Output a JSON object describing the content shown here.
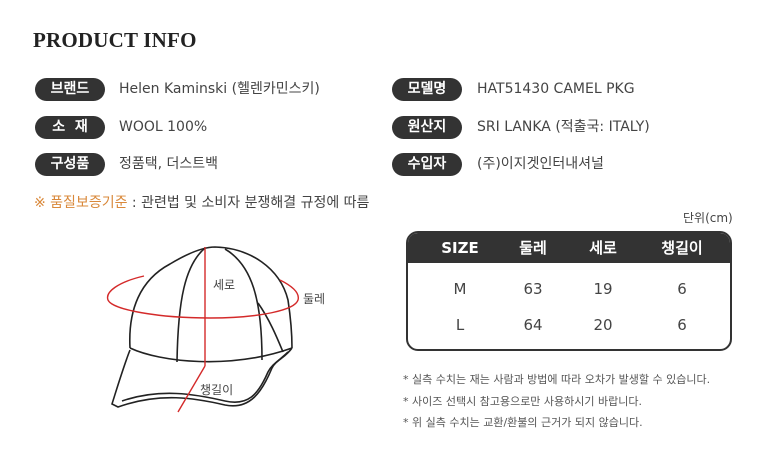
{
  "title": "PRODUCT INFO",
  "info_left": [
    {
      "label": "브랜드",
      "value": "Helen Kaminski (헬렌카민스키)"
    },
    {
      "label": "소  재",
      "value": "WOOL 100%"
    },
    {
      "label": "구성품",
      "value": "정품택, 더스트백"
    }
  ],
  "info_right": [
    {
      "label": "모델명",
      "value": "HAT51430 CAMEL PKG"
    },
    {
      "label": "원산지",
      "value": "SRI LANKA (적출국: ITALY)"
    },
    {
      "label": "수입자",
      "value": "(주)이지겟인터내셔널"
    }
  ],
  "quality": {
    "label": "※ 품질보증기준",
    "text": " : 관련법 및 소비자 분쟁해결 규정에 따름",
    "accent": "#d9883a"
  },
  "diagram": {
    "height_label": "세로",
    "circumference_label": "둘레",
    "brim_label": "챙길이",
    "measure_color": "#d42a2a"
  },
  "size_table": {
    "unit": "단위(cm)",
    "headers": [
      "SIZE",
      "둘레",
      "세로",
      "챙길이"
    ],
    "rows": [
      [
        "M",
        "63",
        "19",
        "6"
      ],
      [
        "L",
        "64",
        "20",
        "6"
      ]
    ]
  },
  "notes": [
    "* 실측 수치는 재는 사람과 방법에 따라 오차가 발생할 수 있습니다.",
    "* 사이즈 선택시 참고용으로만 사용하시기 바랍니다.",
    "* 위 실측 수치는 교환/환불의 근거가 되지 않습니다."
  ]
}
